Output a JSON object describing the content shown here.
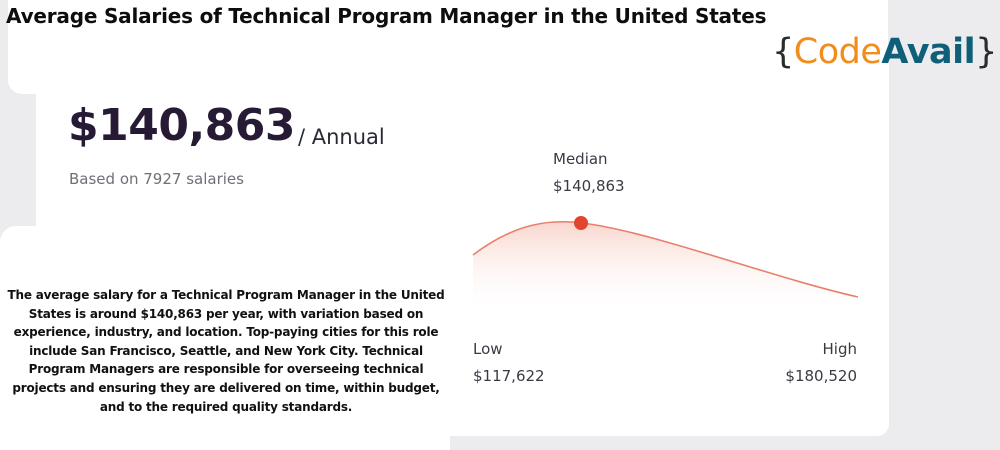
{
  "header": {
    "title": "Average Salaries of Technical Program Manager in the United States"
  },
  "logo": {
    "brace_open": "{",
    "word1": "Code",
    "word2": "Avail",
    "brace_close": "}",
    "colors": {
      "code": "#f28c1a",
      "avail": "#0f5f79"
    }
  },
  "salary": {
    "amount": "$140,863",
    "period": "/ Annual",
    "based_on": "Based on 7927 salaries"
  },
  "distribution": {
    "median_label": "Median",
    "median_value": "$140,863",
    "low_label": "Low",
    "low_value": "$117,622",
    "high_label": "High",
    "high_value": "$180,520",
    "curve_color": "#e8806b",
    "marker_color": "#e2442d"
  },
  "description": "The average salary for a Technical Program Manager in the United States is around $140,863 per year, with variation based on experience, industry, and location. Top-paying cities for this role include San Francisco, Seattle, and New York City. Technical Program Managers are responsible for overseeing technical projects and ensuring they are delivered on time, within budget, and to the required quality standards."
}
